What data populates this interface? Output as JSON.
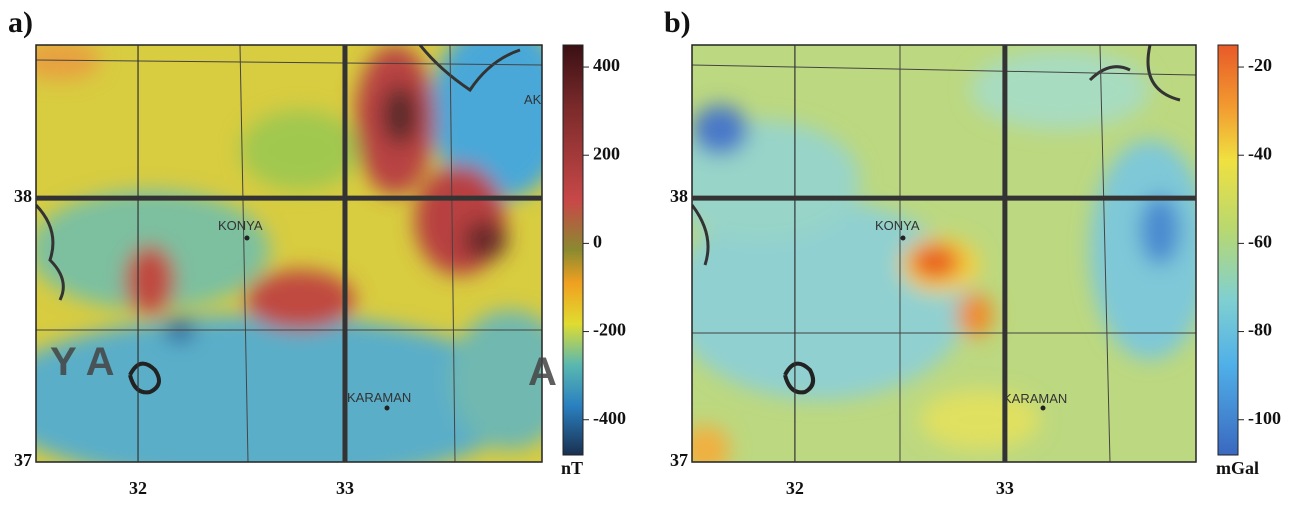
{
  "panels": [
    {
      "label": "a)",
      "xlim": [
        31.507,
        33.952
      ],
      "ylim": [
        37,
        38.58
      ],
      "xticks": [
        32,
        33
      ],
      "yticks": [
        37,
        38
      ],
      "colorbar": {
        "range": [
          -480,
          450
        ],
        "ticks": [
          400,
          200,
          0,
          -200,
          -400
        ],
        "unit": "nT"
      },
      "place_labels": [
        "KONYA",
        "KARAMAN",
        "Y A",
        "AK",
        "A"
      ]
    },
    {
      "label": "b)",
      "xlim": [
        31.51,
        33.91
      ],
      "ylim": [
        37,
        38.58
      ],
      "xticks": [
        32,
        33
      ],
      "yticks": [
        37,
        38
      ],
      "colorbar": {
        "range": [
          -108,
          -15
        ],
        "ticks": [
          -20,
          -40,
          -60,
          -80,
          -100
        ],
        "unit": "mGal"
      },
      "place_labels": [
        "KONYA",
        "KARAMAN"
      ]
    }
  ]
}
